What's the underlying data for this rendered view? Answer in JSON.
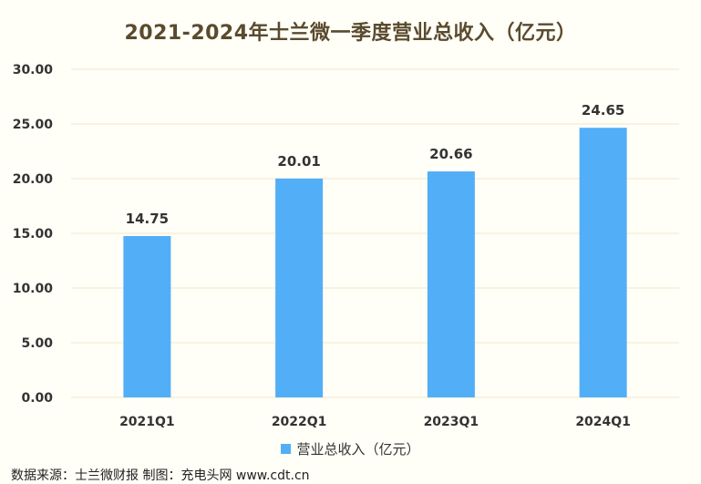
{
  "title": "2021-2024年士兰微一季度营业总收入（亿元）",
  "source_note": "数据来源：士兰微财报 制图：充电头网 www.cdt.cn",
  "chart_data": {
    "type": "bar",
    "title": "2021-2024年士兰微一季度营业总收入（亿元）",
    "categories": [
      "2021Q1",
      "2022Q1",
      "2023Q1",
      "2024Q1"
    ],
    "series": [
      {
        "name": "营业总收入（亿元）",
        "values": [
          14.75,
          20.01,
          20.66,
          24.65
        ]
      }
    ],
    "data_labels": [
      "14.75",
      "20.01",
      "20.66",
      "24.65"
    ],
    "y_ticks": [
      "0.00",
      "5.00",
      "10.00",
      "15.00",
      "20.00",
      "25.00",
      "30.00"
    ],
    "ylim": [
      0,
      30
    ],
    "grid": true,
    "legend_position": "bottom",
    "bar_color": "#52aef7",
    "grid_color": "#f5e6c8"
  }
}
